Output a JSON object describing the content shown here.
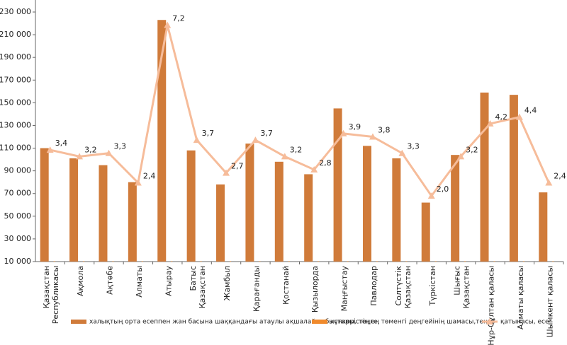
{
  "chart_data": {
    "type": "bar-line",
    "categories": [
      "Қазақстан\nРеспубликасы",
      "Ақмола",
      "Ақтөбе",
      "Алматы",
      "Атырау",
      "Батыс\nҚазақстан",
      "Жамбыл",
      "Қарағанды",
      "Қостанай",
      "Қызылорда",
      "Маңғыстау",
      "Павлодар",
      "Солтүстік\nҚазақстан",
      "Түркістан",
      "Шығыс\nҚазақстан",
      "Нұр-Сұлтан қаласы",
      "Алматы қаласы",
      "Шымкент қаласы"
    ],
    "series": [
      {
        "name": "халықтың орта есеппен жан басына шаққандағы атаулы ақшалай табыстары, теңге",
        "type": "bar",
        "color": "#d07b3a",
        "values": [
          110000,
          101000,
          95000,
          80000,
          223000,
          108000,
          78000,
          114000,
          98000,
          87000,
          145000,
          112000,
          101000,
          62000,
          104000,
          159000,
          157000,
          71000
        ]
      },
      {
        "name": "күнкөрістің ең төменгі деңгейінің шамасы,теңге",
        "type": "bar",
        "color": "#f08a2c",
        "values": [
          10400,
          10400,
          10400,
          10400,
          10400,
          10400,
          10400,
          10400,
          10400,
          10400,
          10400,
          10400,
          10400,
          10400,
          10400,
          10400,
          10400,
          10400
        ]
      },
      {
        "name": "қатынасы, есе",
        "type": "line",
        "axis": "y2",
        "color": "#f6bc9a",
        "values": [
          3.4,
          3.2,
          3.3,
          2.4,
          7.2,
          3.7,
          2.7,
          3.7,
          3.2,
          2.8,
          3.9,
          3.8,
          3.3,
          2.0,
          3.2,
          4.2,
          4.4,
          2.4
        ],
        "value_labels": [
          "3,4",
          "3,2",
          "3,3",
          "2,4",
          "7,2",
          "3,7",
          "2,7",
          "3,7",
          "3,2",
          "2,8",
          "3,9",
          "3,8",
          "3,3",
          "2,0",
          "3,2",
          "4,2",
          "4,4",
          "2,4"
        ]
      }
    ],
    "ylim": [
      10000,
      230000
    ],
    "yticks": [
      {
        "value": 10000,
        "label": "10 000"
      },
      {
        "value": 30000,
        "label": "30 000"
      },
      {
        "value": 50000,
        "label": "50 000"
      },
      {
        "value": 70000,
        "label": "70 000"
      },
      {
        "value": 90000,
        "label": "90 000"
      },
      {
        "value": 110000,
        "label": "110 000"
      },
      {
        "value": 130000,
        "label": "130 000"
      },
      {
        "value": 150000,
        "label": "150 000"
      },
      {
        "value": 170000,
        "label": "170 000"
      },
      {
        "value": 190000,
        "label": "190 000"
      },
      {
        "value": 210000,
        "label": "210 000"
      },
      {
        "value": 230000,
        "label": "230 000"
      }
    ],
    "y2lim": [
      0,
      7.6
    ]
  }
}
